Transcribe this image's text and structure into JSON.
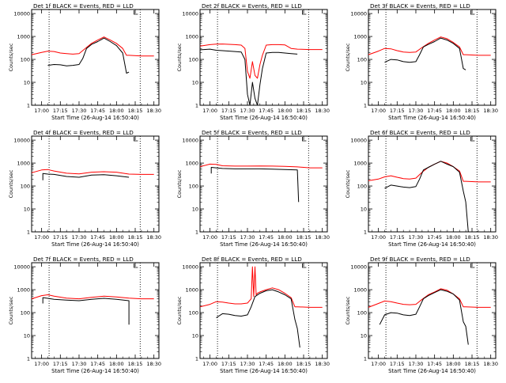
{
  "colors": {
    "events": "#000000",
    "lld": "#ff0000",
    "axis": "#000000",
    "background": "#ffffff"
  },
  "chart_data": [
    {
      "type": "line",
      "title": "Det 1f BLACK = Events, RED = LLD",
      "xlabel": "Start Time (26-Aug-14 16:50:40)",
      "ylabel": "Counts/sec",
      "x_ticks": [
        "17:00",
        "17:15",
        "17:30",
        "17:45",
        "18:00",
        "18:15",
        "18:30"
      ],
      "y_ticks": [
        "1",
        "10",
        "100",
        "1000",
        "10000"
      ],
      "ylim": [
        1,
        15000
      ],
      "yscale": "log",
      "xlim_minutes_from_1700": [
        -8,
        94
      ],
      "vlines_minutes_from_1700": [
        6,
        79,
        94
      ],
      "series": [
        {
          "key": "events",
          "x": [
            5,
            10,
            15,
            20,
            25,
            30,
            33,
            36,
            40,
            45,
            50,
            55,
            60,
            65,
            68,
            70
          ],
          "values": [
            55,
            60,
            58,
            52,
            55,
            60,
            110,
            300,
            450,
            600,
            850,
            600,
            400,
            190,
            25,
            28
          ]
        },
        {
          "key": "lld",
          "x": [
            -8,
            0,
            5,
            10,
            15,
            20,
            25,
            30,
            35,
            40,
            45,
            50,
            55,
            60,
            65,
            68,
            70,
            80,
            90
          ],
          "values": [
            160,
            200,
            230,
            220,
            190,
            180,
            170,
            180,
            300,
            500,
            700,
            950,
            700,
            500,
            300,
            150,
            150,
            140,
            140
          ]
        }
      ]
    },
    {
      "type": "line",
      "title": "Det 2f BLACK = Events, RED = LLD",
      "xlabel": "Start Time (26-Aug-14 16:50:40)",
      "ylabel": "Counts/sec",
      "x_ticks": [
        "17:00",
        "17:15",
        "17:30",
        "17:45",
        "18:00",
        "18:15",
        "18:30"
      ],
      "y_ticks": [
        "1",
        "10",
        "100",
        "1000",
        "10000"
      ],
      "ylim": [
        1,
        15000
      ],
      "yscale": "log",
      "xlim_minutes_from_1700": [
        -8,
        94
      ],
      "vlines_minutes_from_1700": [
        6,
        79,
        94
      ],
      "series": [
        {
          "key": "events",
          "x": [
            -8,
            0,
            5,
            10,
            20,
            25,
            28,
            30,
            32,
            34,
            36,
            38,
            40,
            42,
            45,
            50,
            55,
            60,
            65,
            70
          ],
          "values": [
            260,
            280,
            250,
            240,
            220,
            210,
            100,
            3,
            1,
            10,
            2,
            1,
            8,
            40,
            190,
            200,
            200,
            190,
            180,
            170
          ]
        },
        {
          "key": "lld",
          "x": [
            -8,
            0,
            5,
            10,
            20,
            25,
            28,
            30,
            32,
            34,
            36,
            38,
            40,
            42,
            45,
            50,
            55,
            60,
            65,
            70,
            80,
            90
          ],
          "values": [
            380,
            440,
            460,
            470,
            440,
            420,
            300,
            30,
            15,
            80,
            20,
            15,
            60,
            150,
            420,
            440,
            440,
            430,
            300,
            280,
            270,
            270
          ]
        }
      ]
    },
    {
      "type": "line",
      "title": "Det 3f BLACK = Events, RED = LLD",
      "xlabel": "Start Time (26-Aug-14 16:50:40)",
      "ylabel": "Counts/sec",
      "x_ticks": [
        "17:00",
        "17:15",
        "17:30",
        "17:45",
        "18:00",
        "18:15",
        "18:30"
      ],
      "y_ticks": [
        "1",
        "10",
        "100",
        "1000",
        "10000"
      ],
      "ylim": [
        1,
        15000
      ],
      "yscale": "log",
      "xlim_minutes_from_1700": [
        -8,
        94
      ],
      "vlines_minutes_from_1700": [
        6,
        79,
        94
      ],
      "series": [
        {
          "key": "events",
          "x": [
            5,
            10,
            15,
            20,
            25,
            30,
            33,
            36,
            40,
            45,
            50,
            55,
            60,
            65,
            68,
            70
          ],
          "values": [
            75,
            100,
            95,
            80,
            75,
            80,
            160,
            350,
            450,
            600,
            850,
            700,
            500,
            300,
            40,
            35
          ]
        },
        {
          "key": "lld",
          "x": [
            -8,
            0,
            5,
            10,
            15,
            20,
            25,
            30,
            35,
            40,
            45,
            50,
            55,
            60,
            65,
            68,
            70,
            80,
            90
          ],
          "values": [
            160,
            230,
            300,
            290,
            240,
            210,
            200,
            210,
            330,
            500,
            700,
            950,
            800,
            550,
            350,
            160,
            160,
            150,
            150
          ]
        }
      ]
    },
    {
      "type": "line",
      "title": "Det 4f BLACK = Events, RED = LLD",
      "xlabel": "Start Time (26-Aug-14 16:50:40)",
      "ylabel": "Counts/sec",
      "x_ticks": [
        "17:00",
        "17:15",
        "17:30",
        "17:45",
        "18:00",
        "18:15",
        "18:30"
      ],
      "y_ticks": [
        "1",
        "10",
        "100",
        "1000",
        "10000"
      ],
      "ylim": [
        1,
        15000
      ],
      "yscale": "log",
      "xlim_minutes_from_1700": [
        -8,
        94
      ],
      "vlines_minutes_from_1700": [
        6,
        79,
        94
      ],
      "series": [
        {
          "key": "events",
          "x": [
            1,
            1,
            5,
            10,
            20,
            30,
            40,
            50,
            60,
            70
          ],
          "values": [
            180,
            350,
            330,
            320,
            260,
            240,
            300,
            310,
            280,
            240
          ]
        },
        {
          "key": "lld",
          "x": [
            -8,
            0,
            5,
            10,
            20,
            30,
            40,
            50,
            60,
            70,
            80,
            90
          ],
          "values": [
            380,
            500,
            520,
            450,
            360,
            340,
            400,
            420,
            400,
            330,
            320,
            320
          ]
        }
      ]
    },
    {
      "type": "line",
      "title": "Det 5f BLACK = Events, RED = LLD",
      "xlabel": "Start Time (26-Aug-14 16:50:40)",
      "ylabel": "Counts/sec",
      "x_ticks": [
        "17:00",
        "17:15",
        "17:30",
        "17:45",
        "18:00",
        "18:15",
        "18:30"
      ],
      "y_ticks": [
        "1",
        "10",
        "100",
        "1000",
        "10000"
      ],
      "ylim": [
        1,
        15000
      ],
      "yscale": "log",
      "xlim_minutes_from_1700": [
        -8,
        94
      ],
      "vlines_minutes_from_1700": [
        6,
        79,
        94
      ],
      "series": [
        {
          "key": "events",
          "x": [
            1,
            1,
            5,
            10,
            20,
            30,
            40,
            50,
            60,
            70,
            71
          ],
          "values": [
            350,
            650,
            620,
            580,
            560,
            560,
            560,
            540,
            520,
            500,
            20
          ]
        },
        {
          "key": "lld",
          "x": [
            -8,
            0,
            5,
            10,
            20,
            30,
            40,
            50,
            60,
            70,
            80,
            90
          ],
          "values": [
            700,
            900,
            880,
            760,
            740,
            740,
            750,
            740,
            720,
            680,
            620,
            620
          ]
        }
      ]
    },
    {
      "type": "line",
      "title": "Det 6f BLACK = Events, RED = LLD",
      "xlabel": "Start Time (26-Aug-14 16:50:40)",
      "ylabel": "Counts/sec",
      "x_ticks": [
        "17:00",
        "17:15",
        "17:30",
        "17:45",
        "18:00",
        "18:15",
        "18:30"
      ],
      "y_ticks": [
        "1",
        "10",
        "100",
        "1000",
        "10000"
      ],
      "ylim": [
        1,
        15000
      ],
      "yscale": "log",
      "xlim_minutes_from_1700": [
        -8,
        94
      ],
      "vlines_minutes_from_1700": [
        6,
        79,
        94
      ],
      "series": [
        {
          "key": "events",
          "x": [
            5,
            10,
            15,
            20,
            25,
            30,
            33,
            36,
            40,
            45,
            50,
            55,
            60,
            65,
            68,
            70,
            72
          ],
          "values": [
            80,
            110,
            100,
            90,
            85,
            95,
            200,
            500,
            650,
            900,
            1200,
            900,
            700,
            400,
            60,
            20,
            1
          ]
        },
        {
          "key": "lld",
          "x": [
            -8,
            0,
            5,
            10,
            15,
            20,
            25,
            30,
            35,
            40,
            45,
            50,
            55,
            60,
            65,
            68,
            70,
            80,
            90
          ],
          "values": [
            170,
            200,
            250,
            280,
            240,
            210,
            200,
            220,
            400,
            650,
            900,
            1200,
            1000,
            700,
            450,
            160,
            160,
            150,
            150
          ]
        }
      ]
    },
    {
      "type": "line",
      "title": "Det 7f BLACK = Events, RED = LLD",
      "xlabel": "Start Time (26-Aug-14 16:50:40)",
      "ylabel": "Counts/sec",
      "x_ticks": [
        "17:00",
        "17:15",
        "17:30",
        "17:45",
        "18:00",
        "18:15",
        "18:30"
      ],
      "y_ticks": [
        "1",
        "10",
        "100",
        "1000",
        "10000"
      ],
      "ylim": [
        1,
        15000
      ],
      "yscale": "log",
      "xlim_minutes_from_1700": [
        -8,
        94
      ],
      "vlines_minutes_from_1700": [
        6,
        79,
        94
      ],
      "series": [
        {
          "key": "events",
          "x": [
            1,
            1,
            5,
            10,
            20,
            30,
            40,
            50,
            60,
            70,
            70
          ],
          "values": [
            250,
            450,
            420,
            380,
            350,
            330,
            380,
            420,
            380,
            330,
            30
          ]
        },
        {
          "key": "lld",
          "x": [
            -8,
            0,
            5,
            10,
            20,
            30,
            40,
            50,
            60,
            70,
            80,
            90
          ],
          "values": [
            400,
            550,
            600,
            520,
            430,
            400,
            460,
            520,
            480,
            430,
            400,
            400
          ]
        }
      ]
    },
    {
      "type": "line",
      "title": "Det 8f BLACK = Events, RED = LLD",
      "xlabel": "Start Time (26-Aug-14 16:50:40)",
      "ylabel": "Counts/sec",
      "x_ticks": [
        "17:00",
        "17:15",
        "17:30",
        "17:45",
        "18:00",
        "18:15",
        "18:30"
      ],
      "y_ticks": [
        "1",
        "10",
        "100",
        "1000",
        "10000"
      ],
      "ylim": [
        1,
        15000
      ],
      "yscale": "log",
      "xlim_minutes_from_1700": [
        -8,
        94
      ],
      "vlines_minutes_from_1700": [
        6,
        79,
        94
      ],
      "series": [
        {
          "key": "events",
          "x": [
            5,
            10,
            15,
            20,
            25,
            30,
            33,
            36,
            40,
            45,
            50,
            55,
            60,
            65,
            68,
            70,
            72
          ],
          "values": [
            60,
            90,
            85,
            75,
            70,
            80,
            180,
            500,
            700,
            900,
            1000,
            800,
            600,
            400,
            50,
            20,
            3
          ]
        },
        {
          "key": "lld",
          "x": [
            -8,
            0,
            5,
            10,
            15,
            20,
            25,
            30,
            33,
            34,
            35,
            36,
            37,
            38,
            40,
            45,
            50,
            55,
            60,
            65,
            68,
            70,
            80,
            90
          ],
          "values": [
            180,
            230,
            300,
            290,
            260,
            240,
            240,
            260,
            400,
            10000,
            500,
            10000,
            600,
            700,
            800,
            1000,
            1200,
            1000,
            700,
            450,
            180,
            180,
            170,
            170
          ]
        }
      ]
    },
    {
      "type": "line",
      "title": "Det 9f BLACK = Events, RED = LLD",
      "xlabel": "Start Time (26-Aug-14 16:50:40)",
      "ylabel": "Counts/sec",
      "x_ticks": [
        "17:00",
        "17:15",
        "17:30",
        "17:45",
        "18:00",
        "18:15",
        "18:30"
      ],
      "y_ticks": [
        "1",
        "10",
        "100",
        "1000",
        "10000"
      ],
      "ylim": [
        1,
        15000
      ],
      "yscale": "log",
      "xlim_minutes_from_1700": [
        -8,
        94
      ],
      "vlines_minutes_from_1700": [
        6,
        79,
        94
      ],
      "series": [
        {
          "key": "events",
          "x": [
            1,
            5,
            10,
            15,
            20,
            25,
            30,
            33,
            36,
            40,
            45,
            50,
            55,
            60,
            65,
            68,
            70,
            72
          ],
          "values": [
            30,
            80,
            100,
            95,
            80,
            75,
            85,
            180,
            400,
            550,
            750,
            1000,
            850,
            650,
            350,
            40,
            25,
            4
          ]
        },
        {
          "key": "lld",
          "x": [
            -8,
            0,
            5,
            10,
            15,
            20,
            25,
            30,
            35,
            40,
            45,
            50,
            55,
            60,
            65,
            68,
            70,
            80,
            90
          ],
          "values": [
            170,
            250,
            320,
            300,
            260,
            230,
            220,
            230,
            380,
            600,
            800,
            1100,
            950,
            650,
            400,
            180,
            180,
            170,
            170
          ]
        }
      ]
    }
  ]
}
